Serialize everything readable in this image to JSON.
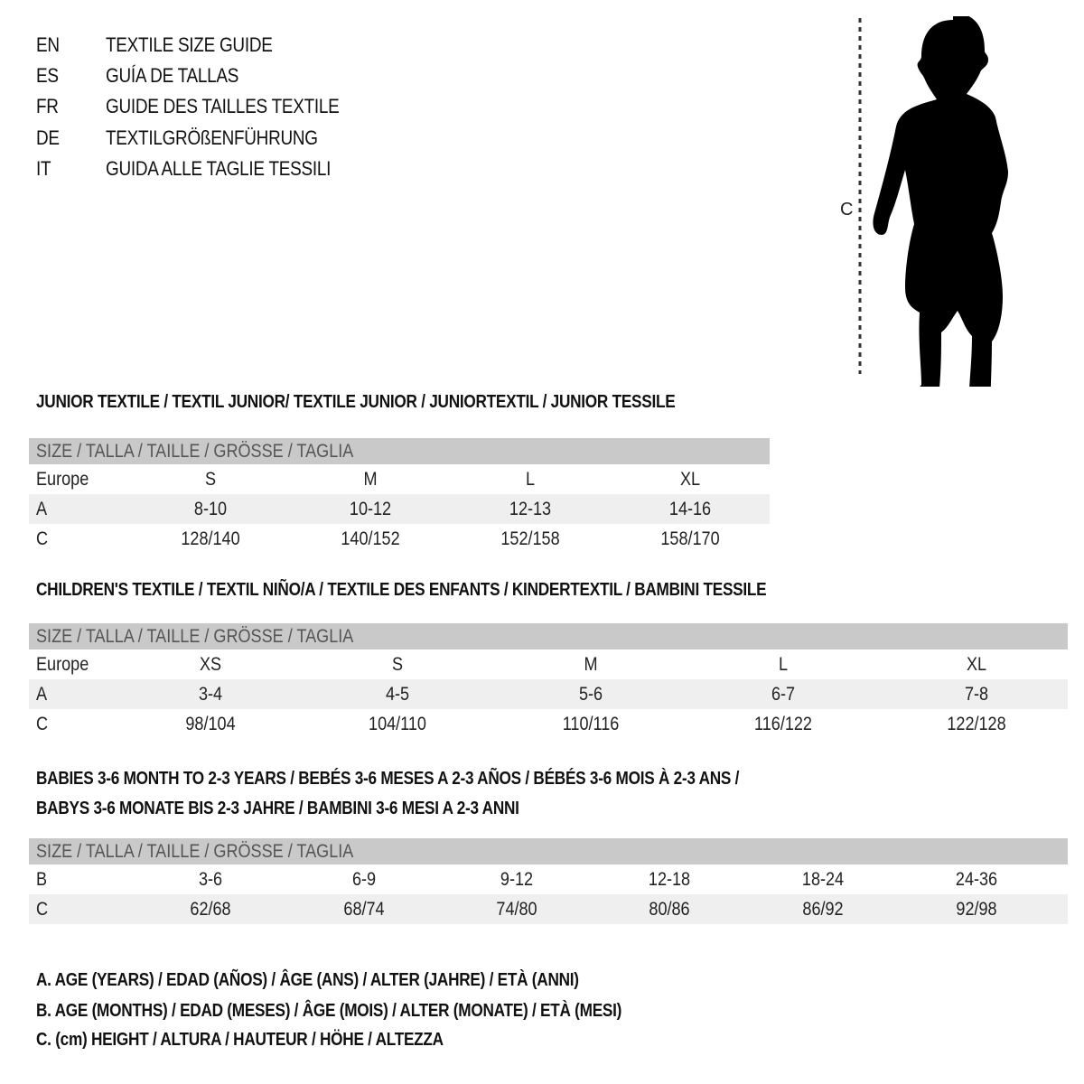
{
  "languages": [
    {
      "code": "EN",
      "text": "TEXTILE SIZE GUIDE"
    },
    {
      "code": "ES",
      "text": "GUÍA DE TALLAS"
    },
    {
      "code": "FR",
      "text": "GUIDE DES TAILLES TEXTILE"
    },
    {
      "code": "DE",
      "text": "TEXTILGRÖßENFÜHRUNG"
    },
    {
      "code": "IT",
      "text": "GUIDA ALLE TAGLIE TESSILI"
    }
  ],
  "figure": {
    "label": "C",
    "icon": "child-silhouette-icon"
  },
  "size_header": "SIZE / TALLA / TAILLE / GRÖSSE / TAGLIA",
  "sections": [
    {
      "title": [
        "JUNIOR TEXTILE / TEXTIL JUNIOR/ TEXTILE JUNIOR / JUNIORTEXTIL / JUNIOR TESSILE"
      ],
      "rows": [
        {
          "label": "Europe",
          "values": [
            "S",
            "M",
            "L",
            "XL"
          ]
        },
        {
          "label": "A",
          "values": [
            "8-10",
            "10-12",
            "12-13",
            "14-16"
          ]
        },
        {
          "label": "C",
          "values": [
            "128/140",
            "140/152",
            "152/158",
            "158/170"
          ]
        }
      ]
    },
    {
      "title": [
        "CHILDREN'S TEXTILE / TEXTIL NIÑO/A / TEXTILE DES ENFANTS / KINDERTEXTIL / BAMBINI TESSILE"
      ],
      "rows": [
        {
          "label": "Europe",
          "values": [
            "XS",
            "S",
            "M",
            "L",
            "XL"
          ]
        },
        {
          "label": "A",
          "values": [
            "3-4",
            "4-5",
            "5-6",
            "6-7",
            "7-8"
          ]
        },
        {
          "label": "C",
          "values": [
            "98/104",
            "104/110",
            "110/116",
            "116/122",
            "122/128"
          ]
        }
      ]
    },
    {
      "title": [
        "BABIES 3-6 MONTH TO 2-3 YEARS / BEBÉS 3-6 MESES A 2-3 AÑOS / BÉBÉS 3-6 MOIS À 2-3 ANS /",
        "BABYS 3-6 MONATE BIS 2-3 JAHRE / BAMBINI 3-6 MESI A 2-3 ANNI"
      ],
      "rows": [
        {
          "label": "B",
          "values": [
            "3-6",
            "6-9",
            "9-12",
            "12-18",
            "18-24",
            "24-36"
          ]
        },
        {
          "label": "C",
          "values": [
            "62/68",
            "68/74",
            "74/80",
            "80/86",
            "86/92",
            "92/98"
          ]
        }
      ]
    }
  ],
  "legend": [
    "A. AGE (YEARS) / EDAD (AÑOS) / ÂGE (ANS) / ALTER (JAHRE) / ETÀ (ANNI)",
    "B. AGE (MONTHS) / EDAD (MESES) / ÂGE (MOIS) / ALTER (MONATE) / ETÀ (MESI)",
    "C. (cm) HEIGHT / ALTURA / HAUTEUR / HÖHE / ALTEZZA"
  ],
  "colors": {
    "header_bg": "#c9c9c9",
    "shade_bg": "#efefef",
    "text": "#111111"
  }
}
